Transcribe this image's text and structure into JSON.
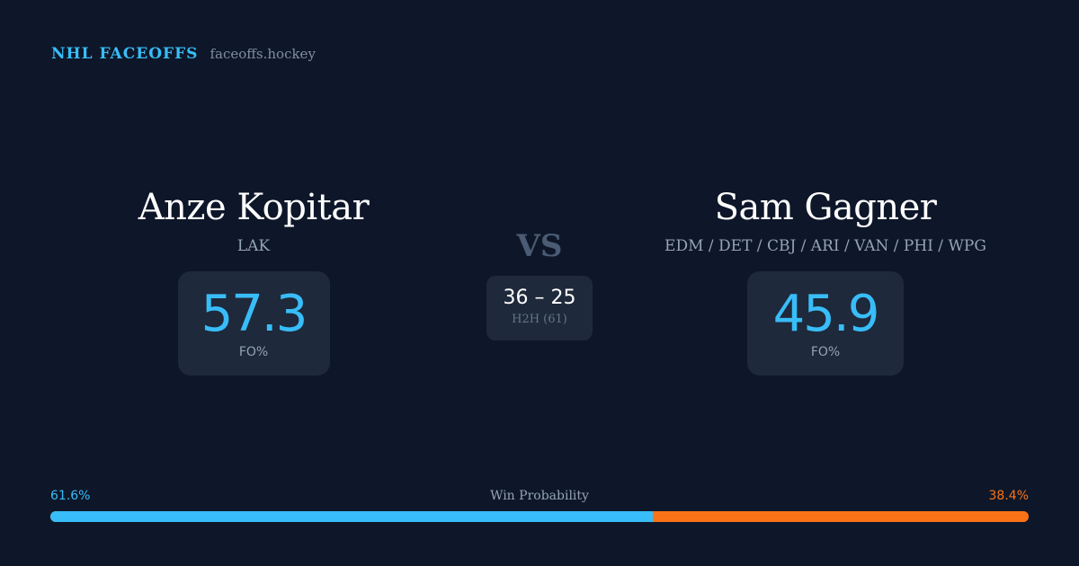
{
  "brand": {
    "title": "NHL FACEOFFS",
    "url": "faceoffs.hockey"
  },
  "player1": {
    "name": "Anze Kopitar",
    "teams": "LAK",
    "fo_pct": "57.3",
    "fo_label": "FO%"
  },
  "player2": {
    "name": "Sam Gagner",
    "teams": "EDM / DET / CBJ / ARI / VAN / PHI / WPG",
    "fo_pct": "45.9",
    "fo_label": "FO%"
  },
  "vs": "VS",
  "h2h": {
    "score": "36 – 25",
    "label": "H2H (61)"
  },
  "win_probability": {
    "label": "Win Probability",
    "left": "61.6%",
    "right": "38.4%",
    "left_value": 61.6,
    "right_value": 38.4,
    "colors": {
      "left": "#38bdf8",
      "right": "#f97316"
    }
  }
}
